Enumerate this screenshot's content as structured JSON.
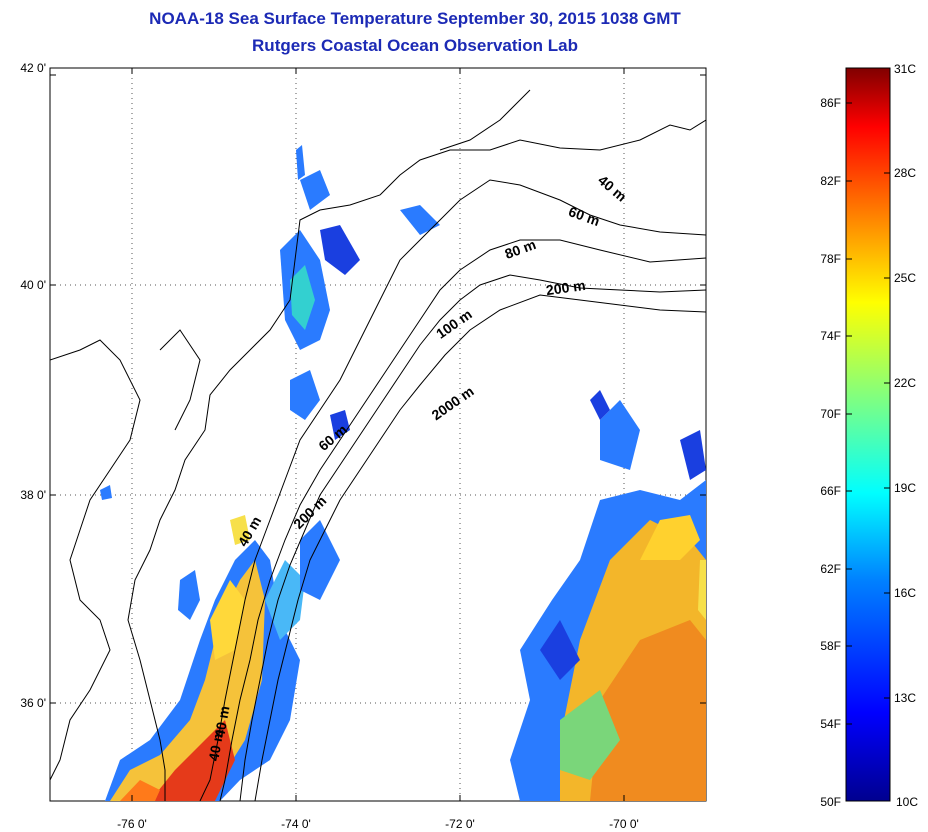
{
  "title": {
    "line1": "NOAA-18 Sea Surface Temperature September 30, 2015 1038 GMT",
    "line2": "Rutgers Coastal Ocean Observation Lab"
  },
  "map": {
    "lat_labels": [
      "42 0'",
      "40 0'",
      "38 0'",
      "36 0'"
    ],
    "lon_labels": [
      "-76 0'",
      "-74 0'",
      "-72 0'",
      "-70 0'"
    ],
    "contour_labels": [
      "40 m",
      "60 m",
      "80 m",
      "200 m",
      "100 m",
      "2000 m",
      "60 m",
      "200 m",
      "40 m",
      "40 m",
      "40 m"
    ]
  },
  "colorbar": {
    "fahrenheit_labels": [
      "86F",
      "82F",
      "78F",
      "74F",
      "70F",
      "66F",
      "62F",
      "58F",
      "54F",
      "50F"
    ],
    "celsius_labels": [
      "31C",
      "28C",
      "25C",
      "22C",
      "19C",
      "16C",
      "13C",
      "10C"
    ],
    "colors": [
      "#00008f",
      "#0000ff",
      "#0080ff",
      "#00ffff",
      "#80ff80",
      "#ffff00",
      "#ff8000",
      "#ff0000",
      "#800000"
    ]
  }
}
